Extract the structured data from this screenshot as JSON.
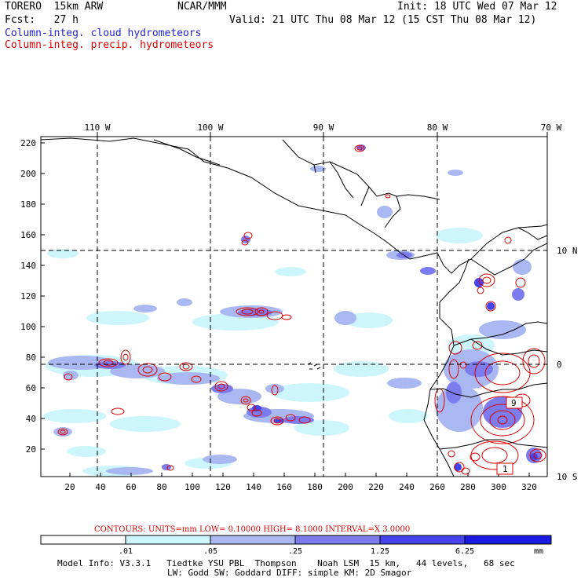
{
  "header": {
    "model": "TORERO  15km ARW",
    "center": "NCAR/MMM",
    "init": "Init: 18 UTC Wed 07 Mar 12",
    "fcst": "Fcst:   27 h",
    "valid": "Valid: 21 UTC Thu 08 Mar 12 (15 CST Thu 08 Mar 12)",
    "field1": "Column-integ. cloud hydrometeors",
    "field2": "Column-integ. precip. hydrometeors"
  },
  "colors": {
    "cloud": "#2222cc",
    "precip": "#dd0000",
    "shade1": "#ccf6fb",
    "shade2": "#aab8f2",
    "shade3": "#7c7cee",
    "shade4": "#4444ea",
    "shade5": "#1a1ae0"
  },
  "axes": {
    "top_labels": [
      "110 W",
      "100 W",
      "90 W",
      "80 W",
      "70 W"
    ],
    "right_labels": [
      "10 N",
      "0",
      "10 S"
    ],
    "y_ticks": [
      "220",
      "200",
      "180",
      "160",
      "140",
      "120",
      "100",
      "80",
      "60",
      "40",
      "20"
    ],
    "x_ticks": [
      "20",
      "40",
      "60",
      "80",
      "100",
      "120",
      "140",
      "160",
      "180",
      "200",
      "220",
      "240",
      "260",
      "280",
      "300",
      "320"
    ]
  },
  "contour_labels": [
    "9",
    "1"
  ],
  "contours_info": "CONTOURS:  UNITS=mm  LOW= 0.10000      HIGH=  8.1000      INTERVAL=X  3.0000",
  "colorbar": {
    "labels": [
      ".01",
      ".05",
      ".25",
      "1.25",
      "6.25"
    ],
    "unit": "mm"
  },
  "footer": {
    "line1": "Model Info: V3.3.1   Tiedtke YSU PBL  Thompson    Noah LSM  15 km,   44 levels,   68 sec",
    "line2": "LW: Godd SW: Goddard DIFF: simple KM: 2D Smagor"
  }
}
